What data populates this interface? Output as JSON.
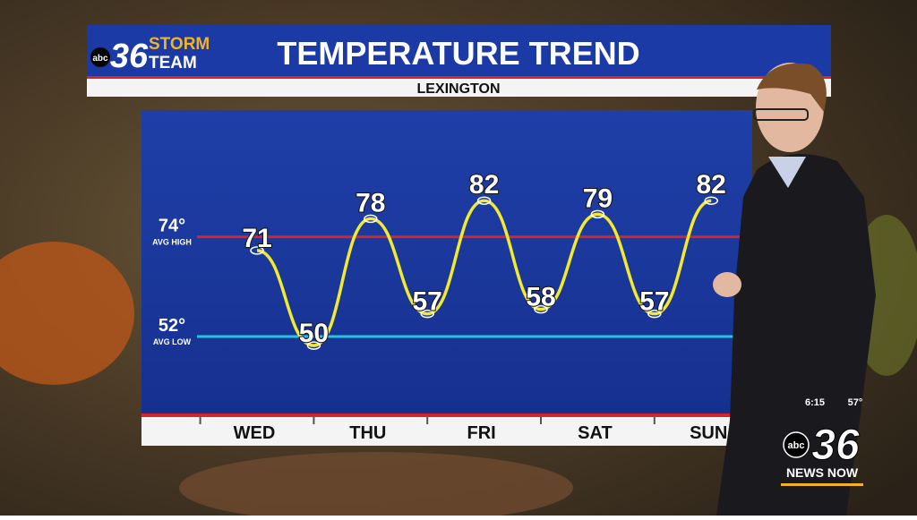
{
  "broadcast": {
    "logo_network": "abc",
    "logo_number": "36",
    "logo_storm": "STORM",
    "logo_team": "TEAM",
    "time": "6:15",
    "current_temp": "57°",
    "bug_network": "abc",
    "bug_number": "36",
    "bug_text": "NEWS NOW"
  },
  "chart_data": {
    "type": "line",
    "title": "TEMPERATURE TREND",
    "subtitle": "LEXINGTON",
    "categories": [
      "WED",
      null,
      "THU",
      null,
      "FRI",
      null,
      "SAT",
      null,
      "SUN"
    ],
    "series": [
      {
        "color": "#f2ea2c",
        "values": [
          71,
          50,
          78,
          57,
          82,
          58,
          79,
          57,
          82
        ]
      }
    ],
    "ylim": [
      35,
      102
    ],
    "reference_lines": [
      {
        "value": 74,
        "label": "74°",
        "name": "AVG HIGH",
        "color": "#d4262b"
      },
      {
        "value": 52,
        "label": "52°",
        "name": "AVG LOW",
        "color": "#27c4e0"
      }
    ]
  }
}
